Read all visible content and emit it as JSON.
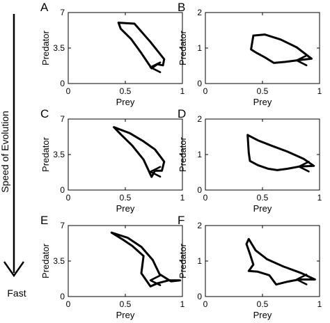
{
  "side_label": {
    "text": "Speed of Evolution",
    "bottom": "Fast"
  },
  "chart_data": [
    {
      "type": "line",
      "panel": "A",
      "xlabel": "Prey",
      "ylabel": "Predator",
      "xlim": [
        0,
        1
      ],
      "ylim": [
        0,
        7
      ],
      "xticks": [
        "0",
        "0.5",
        "1"
      ],
      "yticks": [
        "0",
        "3.5",
        "7"
      ],
      "x": [
        0.44,
        0.58,
        0.72,
        0.84,
        0.83,
        0.78,
        0.73,
        0.64,
        0.55,
        0.46,
        0.44
      ],
      "y": [
        6.0,
        5.9,
        4.1,
        2.4,
        1.8,
        1.9,
        1.5,
        3.0,
        4.4,
        5.4,
        6.0
      ],
      "arrow": {
        "x": 0.72,
        "y": 1.6
      }
    },
    {
      "type": "line",
      "panel": "B",
      "xlabel": "Prey",
      "ylabel": "Predator",
      "xlim": [
        0,
        1
      ],
      "ylim": [
        0,
        2
      ],
      "xticks": [
        "0",
        "0.5",
        "1"
      ],
      "yticks": [
        "0",
        "1",
        "2"
      ],
      "x": [
        0.42,
        0.52,
        0.66,
        0.8,
        0.93,
        0.8,
        0.7,
        0.6,
        0.52,
        0.45,
        0.4,
        0.42
      ],
      "y": [
        1.35,
        1.38,
        1.24,
        1.02,
        0.7,
        0.65,
        0.61,
        0.58,
        0.74,
        0.86,
        0.96,
        1.35
      ],
      "arrow": {
        "x": 0.8,
        "y": 0.65
      }
    },
    {
      "type": "line",
      "panel": "C",
      "xlabel": "Prey",
      "ylabel": "Predator",
      "xlim": [
        0,
        1
      ],
      "ylim": [
        0,
        7
      ],
      "xticks": [
        "0",
        "0.5",
        "1"
      ],
      "yticks": [
        "0",
        "3.5",
        "7"
      ],
      "x": [
        0.4,
        0.54,
        0.66,
        0.76,
        0.84,
        0.82,
        0.76,
        0.73,
        0.66,
        0.56,
        0.46,
        0.4
      ],
      "y": [
        6.2,
        5.6,
        4.8,
        4.0,
        2.8,
        1.9,
        1.9,
        1.3,
        3.0,
        4.4,
        5.5,
        6.2
      ],
      "arrow": {
        "x": 0.72,
        "y": 1.8
      }
    },
    {
      "type": "line",
      "panel": "D",
      "xlabel": "Prey",
      "ylabel": "Predator",
      "xlim": [
        0,
        1
      ],
      "ylim": [
        0,
        2
      ],
      "xticks": [
        "0",
        "0.5",
        "1"
      ],
      "yticks": [
        "0",
        "1",
        "2"
      ],
      "x": [
        0.37,
        0.46,
        0.58,
        0.72,
        0.86,
        0.95,
        0.82,
        0.72,
        0.63,
        0.55,
        0.46,
        0.39,
        0.38,
        0.37
      ],
      "y": [
        1.55,
        1.4,
        1.25,
        1.08,
        0.88,
        0.68,
        0.66,
        0.6,
        0.56,
        0.6,
        0.7,
        0.82,
        1.05,
        1.55
      ],
      "arrow": {
        "x": 0.82,
        "y": 0.66
      }
    },
    {
      "type": "line",
      "panel": "E",
      "xlabel": "Prey",
      "ylabel": "Predator",
      "xlim": [
        0,
        1
      ],
      "ylim": [
        0,
        7
      ],
      "xticks": [
        "0",
        "0.5",
        "1"
      ],
      "yticks": [
        "0",
        "3.5",
        "7"
      ],
      "x": [
        0.38,
        0.52,
        0.64,
        0.74,
        0.8,
        0.9,
        0.98,
        0.88,
        0.78,
        0.72,
        0.64,
        0.66,
        0.56,
        0.48,
        0.38
      ],
      "y": [
        6.3,
        5.8,
        4.9,
        3.6,
        2.2,
        1.5,
        1.6,
        1.6,
        1.3,
        1.0,
        2.3,
        4.0,
        5.0,
        5.6,
        6.3
      ],
      "arrow": {
        "x": 0.72,
        "y": 1.6
      }
    },
    {
      "type": "line",
      "panel": "F",
      "xlabel": "Prey",
      "ylabel": "Predator",
      "xlim": [
        0,
        1
      ],
      "ylim": [
        0,
        2
      ],
      "xticks": [
        "0",
        "0.5",
        "1"
      ],
      "yticks": [
        "0",
        "1",
        "2"
      ],
      "x": [
        0.38,
        0.44,
        0.54,
        0.68,
        0.84,
        0.96,
        0.82,
        0.72,
        0.62,
        0.56,
        0.46,
        0.38,
        0.42,
        0.39,
        0.36,
        0.38
      ],
      "y": [
        1.62,
        1.3,
        1.05,
        0.85,
        0.66,
        0.48,
        0.48,
        0.42,
        0.34,
        0.6,
        0.7,
        0.72,
        0.9,
        1.2,
        1.48,
        1.62
      ],
      "arrow": {
        "x": 0.8,
        "y": 0.48
      }
    }
  ]
}
